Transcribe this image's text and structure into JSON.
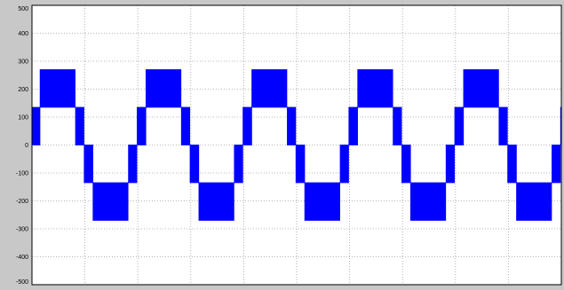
{
  "chart_data": {
    "type": "line",
    "title": "",
    "xlabel": "",
    "ylabel": "",
    "ylim": [
      -500,
      500
    ],
    "yticks": [
      500,
      400,
      300,
      200,
      100,
      0,
      -100,
      -200,
      -300,
      -400,
      -500
    ],
    "ytick_labels": [
      "500",
      "400",
      "300",
      "200",
      "100",
      "0",
      "-100",
      "-200",
      "-300",
      "-400",
      "-500"
    ],
    "xlim": [
      0,
      1
    ],
    "x_divisions": 10,
    "x_tick_labels_visible": false,
    "grid": true,
    "grid_style": "dotted",
    "cycles": 5,
    "waveform": "multilevel PWM stepped voltage (five levels)",
    "levels": [
      -270,
      -135,
      0,
      135,
      270
    ],
    "series": [
      {
        "color": "#0000ff",
        "peak": 270,
        "step": 135
      }
    ]
  },
  "colors": {
    "plot_background": "#ffffff",
    "frame": "#c8c8c8",
    "grid": "#a0a0a0",
    "trace": "#0000ff",
    "text": "#000000"
  }
}
